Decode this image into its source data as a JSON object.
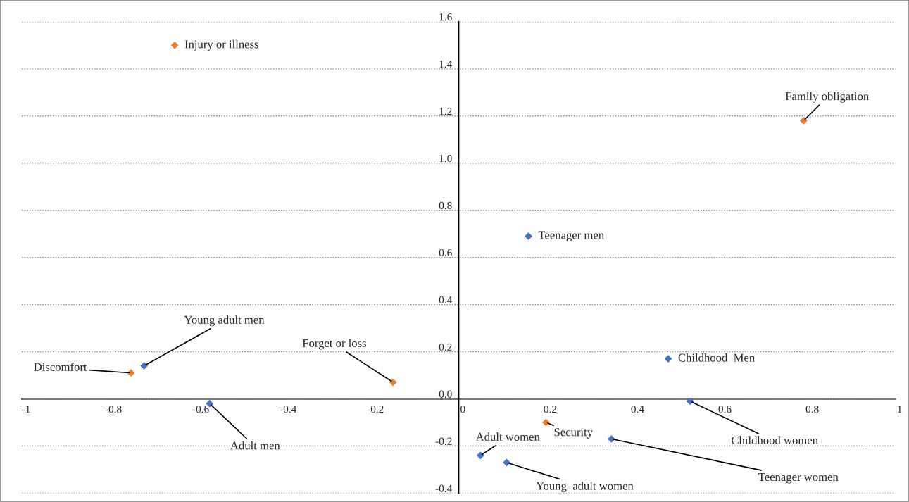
{
  "chart_data": {
    "type": "scatter",
    "marker": "diamond",
    "grid": "y",
    "xlim": [
      -1,
      1
    ],
    "xticks": [
      -1,
      -0.8,
      -0.6,
      -0.4,
      -0.2,
      0,
      0.2,
      0.4,
      0.6,
      0.8,
      1
    ],
    "ylim": [
      -0.4,
      1.6
    ],
    "yticks": [
      {
        "value": -0.4,
        "label": "-0.4"
      },
      {
        "value": -0.2,
        "label": "-0.2"
      },
      {
        "value": 0,
        "label": "0.0"
      },
      {
        "value": 0.2,
        "label": "0.2"
      },
      {
        "value": 0.4,
        "label": "0.4"
      },
      {
        "value": 0.6,
        "label": "0.6"
      },
      {
        "value": 0.8,
        "label": "0.8"
      },
      {
        "value": 1,
        "label": "1.0"
      },
      {
        "value": 1.2,
        "label": "1.2"
      },
      {
        "value": 1.4,
        "label": "1.4"
      },
      {
        "value": 1.6,
        "label": "1.6"
      }
    ],
    "series": [
      {
        "color": "#ed7d31",
        "x": [
          -0.65,
          0.79,
          -0.75,
          -0.15,
          0.2
        ],
        "values": [
          1.5,
          1.18,
          0.11,
          0.07,
          -0.1
        ]
      },
      {
        "color": "#4472c4",
        "x": [
          0.16,
          0.48,
          -0.72,
          -0.57,
          0.53,
          0.35,
          0.05,
          0.11
        ],
        "values": [
          0.69,
          0.17,
          0.14,
          -0.02,
          -0.01,
          -0.17,
          -0.24,
          -0.27
        ]
      }
    ],
    "annotations": [
      {
        "text": "Injury or illness",
        "x": -0.65,
        "y": 1.5
      },
      {
        "text": "Family obligation",
        "x": 0.79,
        "y": 1.18
      },
      {
        "text": "Teenager men",
        "x": 0.16,
        "y": 0.69
      },
      {
        "text": "Childhood  Men",
        "x": 0.48,
        "y": 0.17
      },
      {
        "text": "Discomfort",
        "x": -0.75,
        "y": 0.11
      },
      {
        "text": "Young adult men",
        "x": -0.72,
        "y": 0.14
      },
      {
        "text": "Forget or loss",
        "x": -0.15,
        "y": 0.07
      },
      {
        "text": "Adult men",
        "x": -0.57,
        "y": -0.02
      },
      {
        "text": "Childhood women",
        "x": 0.53,
        "y": -0.01
      },
      {
        "text": "Security",
        "x": 0.2,
        "y": -0.1
      },
      {
        "text": "Teenager women",
        "x": 0.35,
        "y": -0.17
      },
      {
        "text": "Adult women",
        "x": 0.05,
        "y": -0.24
      },
      {
        "text": "Young  adult women",
        "x": 0.11,
        "y": -0.27
      }
    ]
  }
}
